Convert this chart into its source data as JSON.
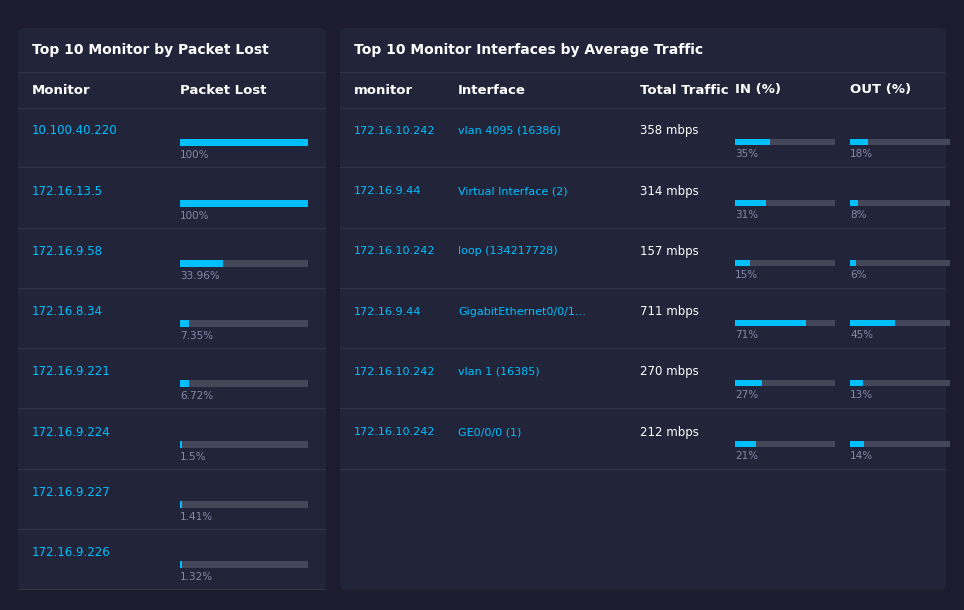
{
  "bg_color": "#1c1c2e",
  "panel_color": "#22243a",
  "divider_color": "#32354a",
  "cyan_text": "#00bfff",
  "white_text": "#ffffff",
  "gray_text": "#8888aa",
  "bar_cyan": "#00bfff",
  "bar_bg": "#44465a",
  "left_title": "Top 10 Monitor by Packet Lost",
  "left_col1": "Monitor",
  "left_col2": "Packet Lost",
  "left_monitors": [
    "10.100.40.220",
    "172.16.13.5",
    "172.16.9.58",
    "172.16.8.34",
    "172.16.9.221",
    "172.16.9.224",
    "172.16.9.227",
    "172.16.9.226"
  ],
  "left_values": [
    100.0,
    100.0,
    33.96,
    7.35,
    6.72,
    1.5,
    1.41,
    1.32
  ],
  "left_labels": [
    "100%",
    "100%",
    "33.96%",
    "7.35%",
    "6.72%",
    "1.5%",
    "1.41%",
    "1.32%"
  ],
  "right_title": "Top 10 Monitor Interfaces by Average Traffic",
  "right_col1": "monitor",
  "right_col2": "Interface",
  "right_col3": "Total Traffic",
  "right_col4": "IN (%)",
  "right_col5": "OUT (%)",
  "right_monitors": [
    "172.16.10.242",
    "172.16.9.44",
    "172.16.10.242",
    "172.16.9.44",
    "172.16.10.242",
    "172.16.10.242"
  ],
  "right_interfaces": [
    "vlan 4095 (16386)",
    "Virtual Interface (2)",
    "loop (134217728)",
    "GigabitEthernet0/0/1...",
    "vlan 1 (16385)",
    "GE0/0/0 (1)"
  ],
  "right_traffic": [
    "358 mbps",
    "314 mbps",
    "157 mbps",
    "711 mbps",
    "270 mbps",
    "212 mbps"
  ],
  "right_in": [
    35,
    31,
    15,
    71,
    27,
    21
  ],
  "right_in_labels": [
    "35%",
    "31%",
    "15%",
    "71%",
    "27%",
    "21%"
  ],
  "right_out": [
    18,
    8,
    6,
    45,
    13,
    14
  ],
  "right_out_labels": [
    "18%",
    "8%",
    "6%",
    "45%",
    "13%",
    "14%"
  ]
}
